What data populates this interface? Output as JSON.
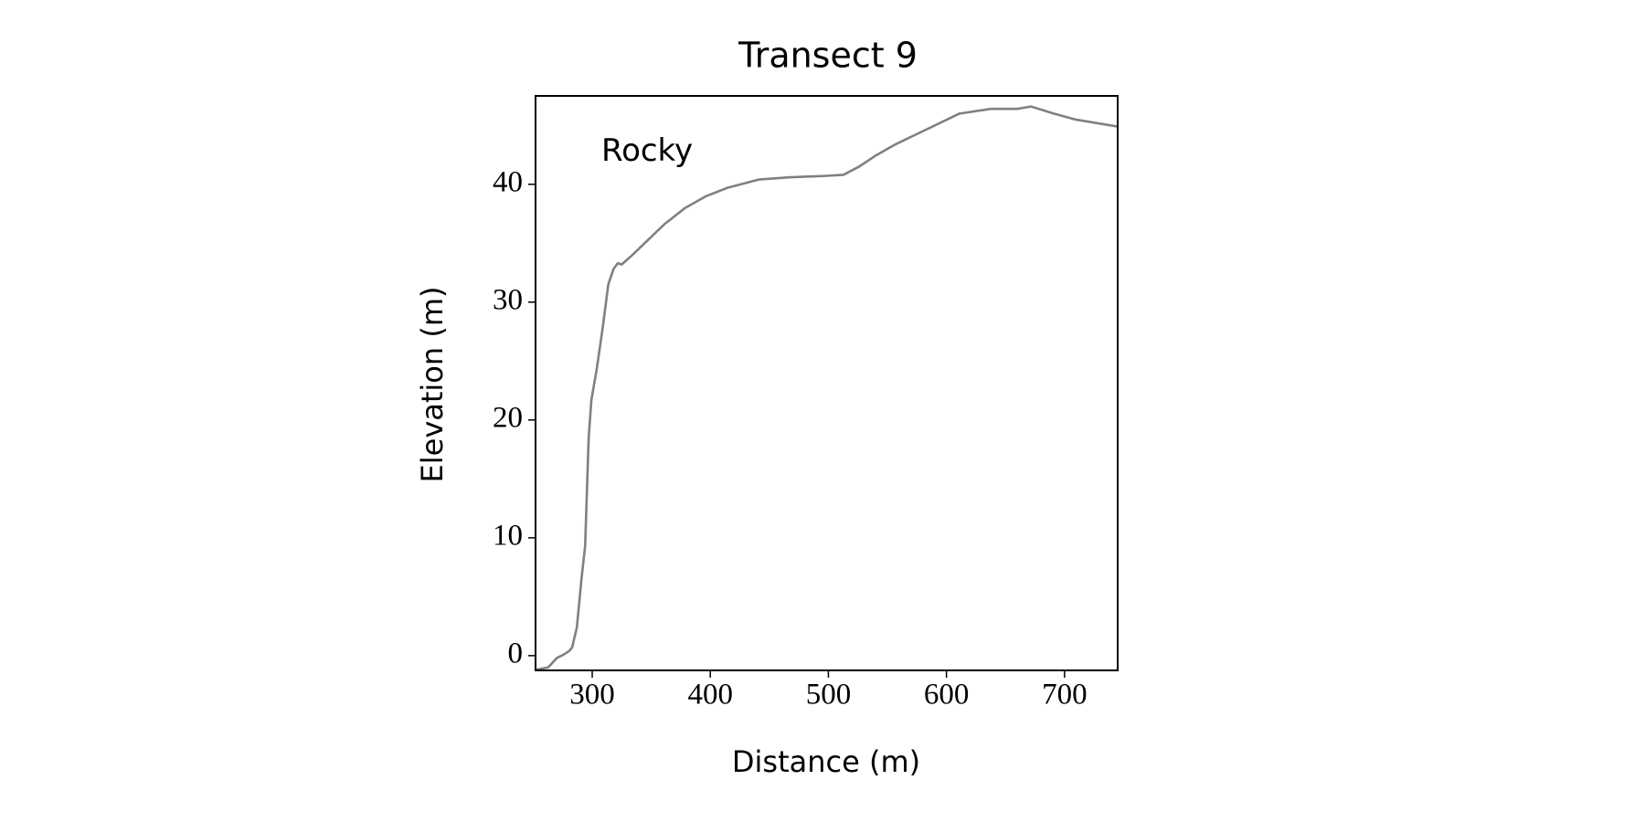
{
  "chart_data": {
    "type": "line",
    "title": "Transect 9",
    "x_label": "Distance (m)",
    "y_label": "Elevation (m)",
    "annotation": "Rocky",
    "series": [
      {
        "name": "Rocky",
        "color": "#808080",
        "x": [
          252,
          262.7,
          270,
          276,
          280.6,
          283,
          287,
          291,
          294,
          297,
          299.3,
          303.8,
          309,
          313.6,
          318,
          321.6,
          325,
          334,
          347.5,
          361,
          378.8,
          396.6,
          414.5,
          441,
          468,
          494.9,
          512.7,
          526,
          539.5,
          557,
          584,
          611,
          637.7,
          660,
          671.6,
          678,
          691,
          709,
          745
        ],
        "values": [
          -1.2,
          -1.0,
          -0.2,
          0.1,
          0.4,
          0.7,
          2.4,
          6.6,
          9.3,
          18.5,
          21.7,
          24.3,
          27.9,
          31.5,
          32.8,
          33.3,
          33.2,
          34.0,
          35.3,
          36.6,
          38.0,
          39.0,
          39.7,
          40.4,
          40.6,
          40.7,
          40.8,
          41.5,
          42.4,
          43.4,
          44.7,
          46.0,
          46.4,
          46.4,
          46.6,
          46.4,
          46.0,
          45.5,
          44.9
        ]
      }
    ],
    "xlim": [
      252,
      745
    ],
    "ylim": [
      -1.25,
      47.5
    ],
    "xticks": [
      300,
      400,
      500,
      600,
      700
    ],
    "yticks": [
      0,
      10,
      20,
      30,
      40
    ]
  }
}
